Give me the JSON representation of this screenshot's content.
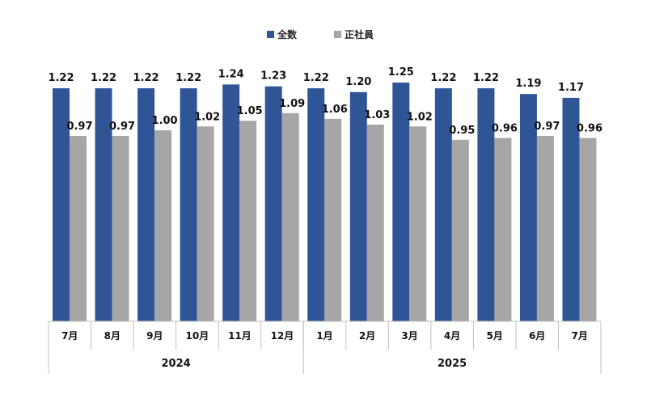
{
  "chart_data": {
    "type": "bar",
    "categories": [
      "7月",
      "8月",
      "9月",
      "10月",
      "11月",
      "12月",
      "1月",
      "2月",
      "3月",
      "4月",
      "5月",
      "6月",
      "7月"
    ],
    "year_groups": [
      {
        "label": "2024",
        "count": 6
      },
      {
        "label": "2025",
        "count": 7
      }
    ],
    "series": [
      {
        "name": "全数",
        "color": "#2f5597",
        "values": [
          1.22,
          1.22,
          1.22,
          1.22,
          1.24,
          1.23,
          1.22,
          1.2,
          1.25,
          1.22,
          1.22,
          1.19,
          1.17
        ]
      },
      {
        "name": "正社員",
        "color": "#a6a6a6",
        "values": [
          0.97,
          0.97,
          1.0,
          1.02,
          1.05,
          1.09,
          1.06,
          1.03,
          1.02,
          0.95,
          0.96,
          0.97,
          0.96
        ]
      }
    ],
    "value_labels": {
      "全数": [
        "1.22",
        "1.22",
        "1.22",
        "1.22",
        "1.24",
        "1.23",
        "1.22",
        "1.20",
        "1.25",
        "1.22",
        "1.22",
        "1.19",
        "1.17"
      ],
      "正社員": [
        "0.97",
        "0.97",
        "1.00",
        "1.02",
        "1.05",
        "1.09",
        "1.06",
        "1.03",
        "1.02",
        "0.95",
        "0.96",
        "0.97",
        "0.96"
      ]
    },
    "title": "",
    "xlabel": "",
    "ylabel": "",
    "grid": false,
    "legend_position": "top-center"
  }
}
